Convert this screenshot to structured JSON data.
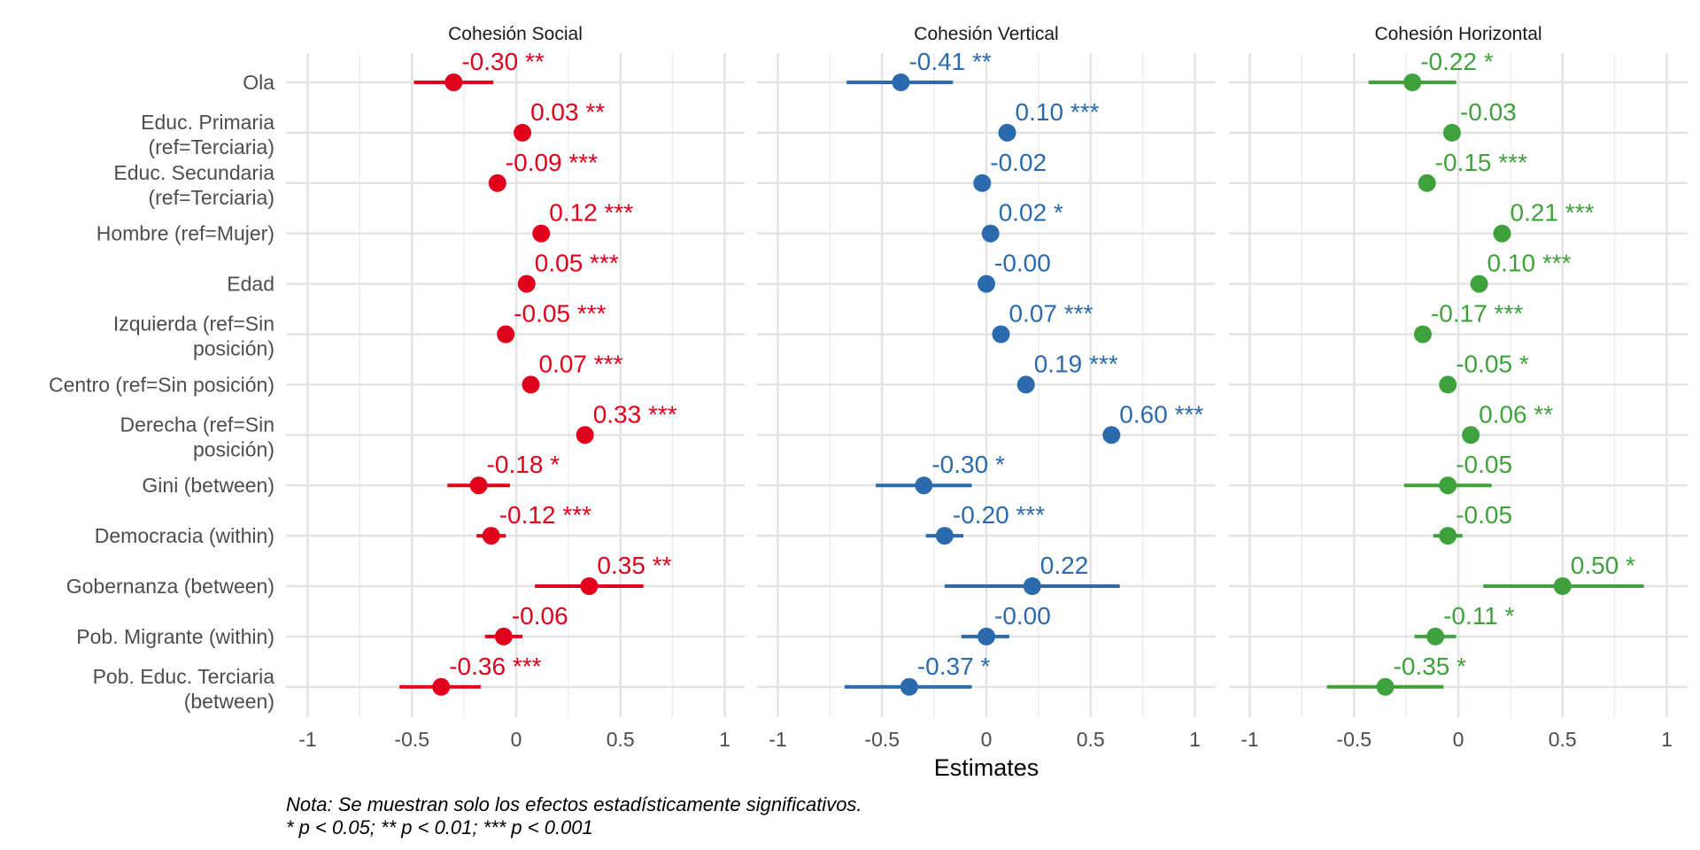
{
  "chart_data": {
    "type": "scatter",
    "subtype": "coefficient-plot",
    "xlabel": "Estimates",
    "xlim": [
      -1.1,
      1.1
    ],
    "x_ticks": [
      -1,
      -0.5,
      0,
      0.5,
      1
    ],
    "x_tick_labels": [
      "-1",
      "-0.5",
      "0",
      "0.5",
      "1"
    ],
    "grid": true,
    "terms": [
      "Ola",
      "Educ. Primaria\n(ref=Terciaria)",
      "Educ. Secundaria\n(ref=Terciaria)",
      "Hombre (ref=Mujer)",
      "Edad",
      "Izquierda (ref=Sin\nposición)",
      "Centro (ref=Sin posición)",
      "Derecha (ref=Sin\nposición)",
      "Gini (between)",
      "Democracia (within)",
      "Gobernanza (between)",
      "Pob. Migrante (within)",
      "Pob. Educ. Terciaria\n(between)"
    ],
    "panels": [
      {
        "title": "Cohesión Social",
        "color": "#E0001B",
        "estimates": [
          -0.3,
          0.03,
          -0.09,
          0.12,
          0.05,
          -0.05,
          0.07,
          0.33,
          -0.18,
          -0.12,
          0.35,
          -0.06,
          -0.36
        ],
        "labels": [
          "-0.30 **",
          "0.03 **",
          "-0.09 ***",
          "0.12 ***",
          "0.05 ***",
          "-0.05 ***",
          "0.07 ***",
          "0.33 ***",
          "-0.18 *",
          "-0.12 ***",
          "0.35 **",
          "-0.06",
          "-0.36 ***"
        ],
        "ci_low": [
          -0.49,
          null,
          null,
          null,
          null,
          null,
          null,
          null,
          -0.33,
          -0.19,
          0.09,
          -0.15,
          -0.56
        ],
        "ci_high": [
          -0.11,
          null,
          null,
          null,
          null,
          null,
          null,
          null,
          -0.03,
          -0.05,
          0.61,
          0.03,
          -0.17
        ]
      },
      {
        "title": "Cohesión Vertical",
        "color": "#2B6AAC",
        "estimates": [
          -0.41,
          0.1,
          -0.02,
          0.02,
          -0.0,
          0.07,
          0.19,
          0.6,
          -0.3,
          -0.2,
          0.22,
          -0.0,
          -0.37
        ],
        "labels": [
          "-0.41 **",
          "0.10 ***",
          "-0.02",
          "0.02 *",
          "-0.00",
          "0.07 ***",
          "0.19 ***",
          "0.60 ***",
          "-0.30 *",
          "-0.20 ***",
          "0.22",
          "-0.00",
          "-0.37 *"
        ],
        "ci_low": [
          -0.67,
          null,
          null,
          null,
          null,
          null,
          null,
          null,
          -0.53,
          -0.29,
          -0.2,
          -0.12,
          -0.68
        ],
        "ci_high": [
          -0.16,
          null,
          null,
          null,
          null,
          null,
          null,
          null,
          -0.07,
          -0.11,
          0.64,
          0.11,
          -0.07
        ]
      },
      {
        "title": "Cohesión Horizontal",
        "color": "#3FA13B",
        "estimates": [
          -0.22,
          -0.03,
          -0.15,
          0.21,
          0.1,
          -0.17,
          -0.05,
          0.06,
          -0.05,
          -0.05,
          0.5,
          -0.11,
          -0.35
        ],
        "labels": [
          "-0.22 *",
          "-0.03",
          "-0.15 ***",
          "0.21 ***",
          "0.10 ***",
          "-0.17 ***",
          "-0.05 *",
          "0.06 **",
          "-0.05",
          "-0.05",
          "0.50 *",
          "-0.11 *",
          "-0.35 *"
        ],
        "ci_low": [
          -0.43,
          null,
          null,
          null,
          null,
          null,
          null,
          null,
          -0.26,
          -0.12,
          0.12,
          -0.21,
          -0.63
        ],
        "ci_high": [
          -0.01,
          null,
          null,
          null,
          null,
          null,
          null,
          null,
          0.16,
          0.02,
          0.89,
          -0.01,
          -0.07
        ]
      }
    ],
    "caption": [
      "Nota: Se muestran solo los efectos estadísticamente significativos.",
      "* p < 0.05; ** p < 0.01; *** p < 0.001"
    ]
  }
}
